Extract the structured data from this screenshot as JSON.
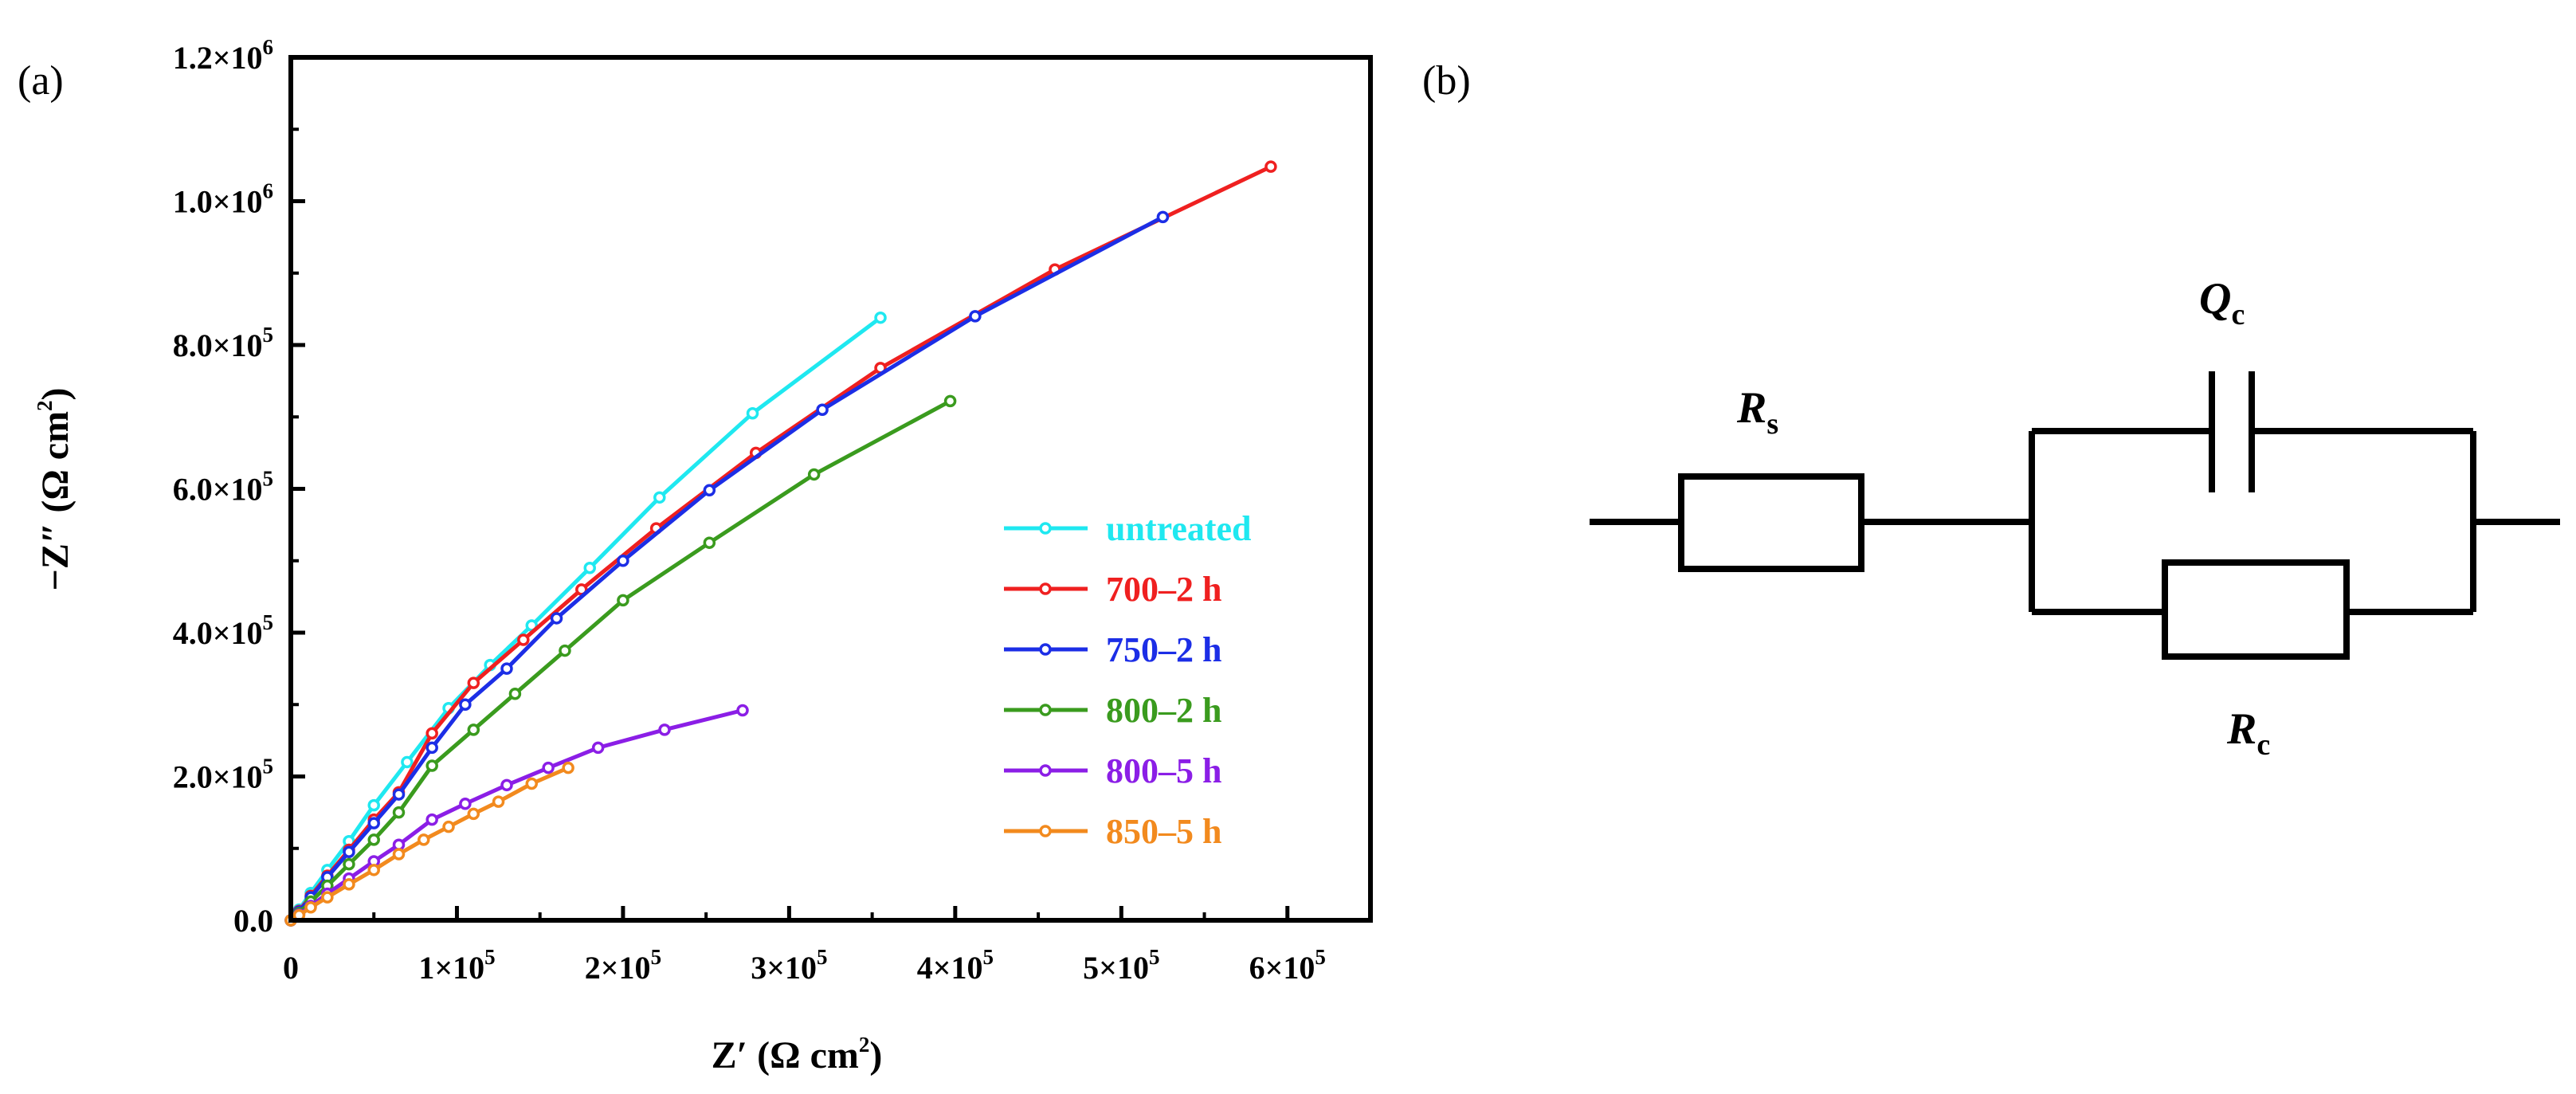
{
  "panel_a": {
    "label": "(a)"
  },
  "panel_b": {
    "label": "(b)"
  },
  "chart_data": {
    "type": "line",
    "title": "",
    "xlabel": "Z′ (Ω cm²)",
    "xlabel_main": "Z′ (Ω cm",
    "xlabel_sup": "2",
    "xlabel_tail": ")",
    "ylabel": "−Z″ (Ω cm²)",
    "ylabel_main": "−Z″ (Ω cm",
    "ylabel_sup": "2",
    "ylabel_tail": ")",
    "xlim": [
      0,
      650000
    ],
    "ylim": [
      0,
      1200000
    ],
    "x_ticks": [
      {
        "value": 0,
        "main": "0",
        "exp": ""
      },
      {
        "value": 100000,
        "main": "1×10",
        "exp": "5"
      },
      {
        "value": 200000,
        "main": "2×10",
        "exp": "5"
      },
      {
        "value": 300000,
        "main": "3×10",
        "exp": "5"
      },
      {
        "value": 400000,
        "main": "4×10",
        "exp": "5"
      },
      {
        "value": 500000,
        "main": "5×10",
        "exp": "5"
      },
      {
        "value": 600000,
        "main": "6×10",
        "exp": "5"
      }
    ],
    "y_ticks": [
      {
        "value": 0,
        "main": "0.0",
        "exp": ""
      },
      {
        "value": 200000,
        "main": "2.0×10",
        "exp": "5"
      },
      {
        "value": 400000,
        "main": "4.0×10",
        "exp": "5"
      },
      {
        "value": 600000,
        "main": "6.0×10",
        "exp": "5"
      },
      {
        "value": 800000,
        "main": "8.0×10",
        "exp": "5"
      },
      {
        "value": 1000000,
        "main": "1.0×10",
        "exp": "6"
      },
      {
        "value": 1200000,
        "main": "1.2×10",
        "exp": "6"
      }
    ],
    "legend_position": "center-right",
    "series": [
      {
        "name": "untreated",
        "color": "#1fe8f0",
        "points": [
          [
            0,
            0
          ],
          [
            5000,
            15000
          ],
          [
            12000,
            38000
          ],
          [
            22000,
            70000
          ],
          [
            35000,
            110000
          ],
          [
            50000,
            160000
          ],
          [
            70000,
            220000
          ],
          [
            95000,
            295000
          ],
          [
            120000,
            355000
          ],
          [
            145000,
            410000
          ],
          [
            180000,
            490000
          ],
          [
            222000,
            588000
          ],
          [
            278000,
            705000
          ],
          [
            355000,
            838000
          ]
        ]
      },
      {
        "name": "700–2 h",
        "color": "#ef2020",
        "points": [
          [
            0,
            0
          ],
          [
            5000,
            13000
          ],
          [
            12000,
            34000
          ],
          [
            22000,
            62000
          ],
          [
            35000,
            98000
          ],
          [
            50000,
            140000
          ],
          [
            65000,
            178000
          ],
          [
            85000,
            260000
          ],
          [
            110000,
            330000
          ],
          [
            140000,
            390000
          ],
          [
            175000,
            460000
          ],
          [
            220000,
            545000
          ],
          [
            280000,
            650000
          ],
          [
            355000,
            768000
          ],
          [
            460000,
            905000
          ],
          [
            590000,
            1048000
          ]
        ]
      },
      {
        "name": "750–2 h",
        "color": "#1c2ee6",
        "points": [
          [
            0,
            0
          ],
          [
            5000,
            12000
          ],
          [
            12000,
            32000
          ],
          [
            22000,
            60000
          ],
          [
            35000,
            95000
          ],
          [
            50000,
            135000
          ],
          [
            65000,
            175000
          ],
          [
            85000,
            240000
          ],
          [
            105000,
            300000
          ],
          [
            130000,
            350000
          ],
          [
            160000,
            420000
          ],
          [
            200000,
            500000
          ],
          [
            252000,
            598000
          ],
          [
            320000,
            710000
          ],
          [
            412000,
            840000
          ],
          [
            525000,
            978000
          ]
        ]
      },
      {
        "name": "800–2 h",
        "color": "#3a9b1e",
        "points": [
          [
            0,
            0
          ],
          [
            5000,
            10000
          ],
          [
            12000,
            26000
          ],
          [
            22000,
            48000
          ],
          [
            35000,
            78000
          ],
          [
            50000,
            112000
          ],
          [
            65000,
            150000
          ],
          [
            85000,
            215000
          ],
          [
            110000,
            265000
          ],
          [
            135000,
            315000
          ],
          [
            165000,
            375000
          ],
          [
            200000,
            445000
          ],
          [
            252000,
            525000
          ],
          [
            315000,
            620000
          ],
          [
            397000,
            722000
          ]
        ]
      },
      {
        "name": "800–5 h",
        "color": "#8b1ee6",
        "points": [
          [
            0,
            0
          ],
          [
            5000,
            8000
          ],
          [
            12000,
            20000
          ],
          [
            22000,
            37000
          ],
          [
            35000,
            58000
          ],
          [
            50000,
            82000
          ],
          [
            65000,
            105000
          ],
          [
            85000,
            140000
          ],
          [
            105000,
            162000
          ],
          [
            130000,
            188000
          ],
          [
            155000,
            212000
          ],
          [
            185000,
            240000
          ],
          [
            225000,
            265000
          ],
          [
            272000,
            292000
          ]
        ]
      },
      {
        "name": "850–5 h",
        "color": "#f28a1e",
        "points": [
          [
            0,
            0
          ],
          [
            5000,
            7000
          ],
          [
            12000,
            18000
          ],
          [
            22000,
            32000
          ],
          [
            35000,
            50000
          ],
          [
            50000,
            70000
          ],
          [
            65000,
            92000
          ],
          [
            80000,
            112000
          ],
          [
            95000,
            130000
          ],
          [
            110000,
            148000
          ],
          [
            125000,
            165000
          ],
          [
            145000,
            190000
          ],
          [
            167000,
            212000
          ]
        ]
      }
    ]
  },
  "circuit": {
    "rs": {
      "main": "R",
      "sub": "s"
    },
    "qc": {
      "main": "Q",
      "sub": "c"
    },
    "rc": {
      "main": "R",
      "sub": "c"
    }
  }
}
